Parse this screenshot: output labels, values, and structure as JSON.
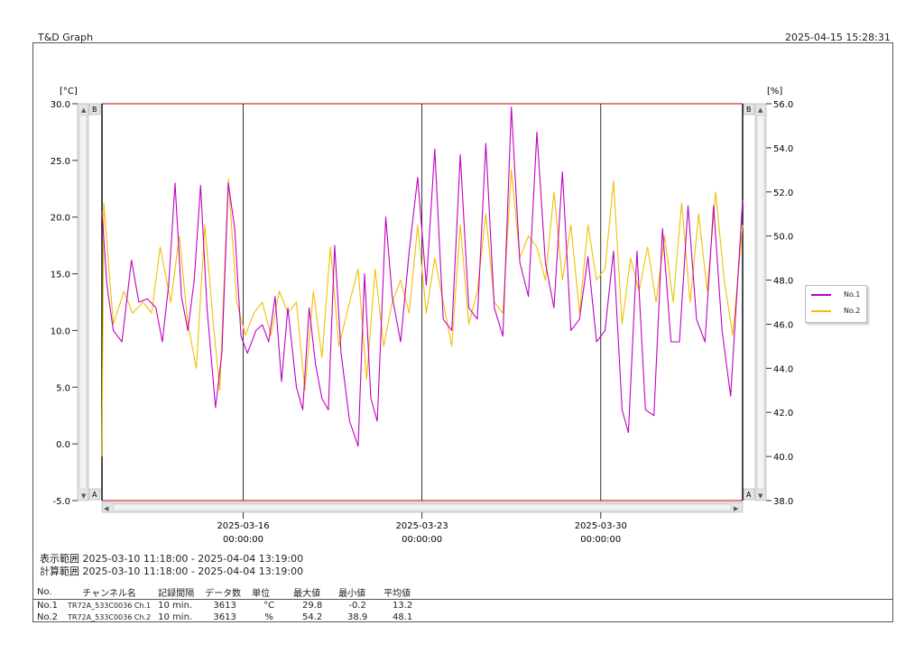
{
  "header": {
    "app_title": "T&D Graph",
    "timestamp": "2025-04-15 15:28:31"
  },
  "ranges": {
    "display_label": "表示範囲",
    "display_value": "2025-03-10 11:18:00 - 2025-04-04 13:19:00",
    "calc_label": "計算範囲",
    "calc_value": "2025-03-10 11:18:00 - 2025-04-04 13:19:00"
  },
  "scroll_labels": {
    "top": "B",
    "bottom": "A"
  },
  "legend": [
    {
      "label": "No.1",
      "color": "#c000c0"
    },
    {
      "label": "No.2",
      "color": "#f0c000"
    }
  ],
  "table": {
    "headers": [
      "No.",
      "チャンネル名",
      "記録間隔",
      "データ数",
      "単位",
      "最大値",
      "最小値",
      "平均値"
    ],
    "rows": [
      [
        "No.1",
        "TR72A_533C0036 Ch.1",
        "10 min.",
        "3613",
        "°C",
        "29.8",
        "-0.2",
        "13.2"
      ],
      [
        "No.2",
        "TR72A_533C0036 Ch.2",
        "10 min.",
        "3613",
        "%",
        "54.2",
        "38.9",
        "48.1"
      ]
    ]
  },
  "chart_data": {
    "type": "line",
    "x_range": [
      "2025-03-10 11:18:00",
      "2025-04-04 13:19:00"
    ],
    "x_ticks": [
      {
        "date": "2025-03-16",
        "time": "00:00:00",
        "t": "2025-03-16 00:00:00"
      },
      {
        "date": "2025-03-23",
        "time": "00:00:00",
        "t": "2025-03-23 00:00:00"
      },
      {
        "date": "2025-03-30",
        "time": "00:00:00",
        "t": "2025-03-30 00:00:00"
      }
    ],
    "y_left": {
      "label": "[°C]",
      "range": [
        -5,
        30
      ],
      "ticks": [
        "30.0",
        "25.0",
        "20.0",
        "15.0",
        "10.0",
        "5.0",
        "0.0",
        "-5.0"
      ]
    },
    "y_right": {
      "label": "[%]",
      "range": [
        38,
        56
      ],
      "ticks": [
        "56.0",
        "54.0",
        "52.0",
        "50.0",
        "48.0",
        "46.0",
        "44.0",
        "42.0",
        "40.0",
        "38.0"
      ]
    },
    "series": [
      {
        "name": "No.1",
        "axis": "left",
        "color": "#c000c0",
        "points": [
          [
            "2025-03-10 11:18:00",
            20.5
          ],
          [
            "2025-03-10 16:00:00",
            14.0
          ],
          [
            "2025-03-10 22:00:00",
            10.0
          ],
          [
            "2025-03-11 06:00:00",
            9.0
          ],
          [
            "2025-03-11 15:00:00",
            16.2
          ],
          [
            "2025-03-11 22:00:00",
            12.5
          ],
          [
            "2025-03-12 06:00:00",
            12.8
          ],
          [
            "2025-03-12 14:00:00",
            12.0
          ],
          [
            "2025-03-12 20:00:00",
            9.0
          ],
          [
            "2025-03-13 02:00:00",
            14.0
          ],
          [
            "2025-03-13 08:00:00",
            23.0
          ],
          [
            "2025-03-13 14:00:00",
            13.0
          ],
          [
            "2025-03-13 20:00:00",
            10.0
          ],
          [
            "2025-03-14 02:00:00",
            14.5
          ],
          [
            "2025-03-14 08:00:00",
            22.8
          ],
          [
            "2025-03-14 14:00:00",
            12.0
          ],
          [
            "2025-03-14 22:00:00",
            3.2
          ],
          [
            "2025-03-15 04:00:00",
            8.0
          ],
          [
            "2025-03-15 10:00:00",
            23.0
          ],
          [
            "2025-03-15 16:00:00",
            19.0
          ],
          [
            "2025-03-15 22:00:00",
            9.5
          ],
          [
            "2025-03-16 04:00:00",
            8.0
          ],
          [
            "2025-03-16 12:00:00",
            10.0
          ],
          [
            "2025-03-16 18:00:00",
            10.5
          ],
          [
            "2025-03-17 00:00:00",
            9.0
          ],
          [
            "2025-03-17 06:00:00",
            13.0
          ],
          [
            "2025-03-17 12:00:00",
            5.5
          ],
          [
            "2025-03-17 18:00:00",
            12.0
          ],
          [
            "2025-03-18 02:00:00",
            5.0
          ],
          [
            "2025-03-18 08:00:00",
            3.0
          ],
          [
            "2025-03-18 14:00:00",
            12.0
          ],
          [
            "2025-03-18 20:00:00",
            7.0
          ],
          [
            "2025-03-19 02:00:00",
            4.0
          ],
          [
            "2025-03-19 08:00:00",
            3.0
          ],
          [
            "2025-03-19 14:00:00",
            17.5
          ],
          [
            "2025-03-19 20:00:00",
            8.0
          ],
          [
            "2025-03-20 04:00:00",
            2.0
          ],
          [
            "2025-03-20 12:00:00",
            -0.2
          ],
          [
            "2025-03-20 18:00:00",
            15.0
          ],
          [
            "2025-03-21 00:00:00",
            4.0
          ],
          [
            "2025-03-21 06:00:00",
            2.0
          ],
          [
            "2025-03-21 14:00:00",
            20.0
          ],
          [
            "2025-03-21 20:00:00",
            13.0
          ],
          [
            "2025-03-22 04:00:00",
            9.0
          ],
          [
            "2025-03-22 12:00:00",
            17.0
          ],
          [
            "2025-03-22 20:00:00",
            23.5
          ],
          [
            "2025-03-23 04:00:00",
            14.0
          ],
          [
            "2025-03-23 12:00:00",
            26.0
          ],
          [
            "2025-03-23 20:00:00",
            11.0
          ],
          [
            "2025-03-24 04:00:00",
            10.0
          ],
          [
            "2025-03-24 12:00:00",
            25.5
          ],
          [
            "2025-03-24 20:00:00",
            12.0
          ],
          [
            "2025-03-25 04:00:00",
            11.0
          ],
          [
            "2025-03-25 12:00:00",
            26.5
          ],
          [
            "2025-03-25 20:00:00",
            12.0
          ],
          [
            "2025-03-26 04:00:00",
            9.5
          ],
          [
            "2025-03-26 12:00:00",
            29.7
          ],
          [
            "2025-03-26 20:00:00",
            16.0
          ],
          [
            "2025-03-27 04:00:00",
            13.0
          ],
          [
            "2025-03-27 12:00:00",
            27.5
          ],
          [
            "2025-03-27 20:00:00",
            16.0
          ],
          [
            "2025-03-28 04:00:00",
            12.0
          ],
          [
            "2025-03-28 12:00:00",
            24.0
          ],
          [
            "2025-03-28 20:00:00",
            10.0
          ],
          [
            "2025-03-29 04:00:00",
            11.0
          ],
          [
            "2025-03-29 12:00:00",
            16.5
          ],
          [
            "2025-03-29 20:00:00",
            9.0
          ],
          [
            "2025-03-30 04:00:00",
            10.0
          ],
          [
            "2025-03-30 12:00:00",
            17.0
          ],
          [
            "2025-03-30 20:00:00",
            3.0
          ],
          [
            "2025-03-31 02:00:00",
            1.0
          ],
          [
            "2025-03-31 10:00:00",
            17.0
          ],
          [
            "2025-03-31 18:00:00",
            3.0
          ],
          [
            "2025-04-01 02:00:00",
            2.5
          ],
          [
            "2025-04-01 10:00:00",
            19.0
          ],
          [
            "2025-04-01 18:00:00",
            9.0
          ],
          [
            "2025-04-02 02:00:00",
            9.0
          ],
          [
            "2025-04-02 10:00:00",
            21.0
          ],
          [
            "2025-04-02 18:00:00",
            11.0
          ],
          [
            "2025-04-03 02:00:00",
            9.0
          ],
          [
            "2025-04-03 10:00:00",
            21.0
          ],
          [
            "2025-04-03 18:00:00",
            10.0
          ],
          [
            "2025-04-04 02:00:00",
            4.2
          ],
          [
            "2025-04-04 13:19:00",
            21.5
          ]
        ]
      },
      {
        "name": "No.2",
        "axis": "right",
        "color": "#f0c000",
        "points": [
          [
            "2025-03-10 11:18:00",
            40.0
          ],
          [
            "2025-03-10 13:00:00",
            51.5
          ],
          [
            "2025-03-10 22:00:00",
            46.0
          ],
          [
            "2025-03-11 08:00:00",
            47.5
          ],
          [
            "2025-03-11 16:00:00",
            46.5
          ],
          [
            "2025-03-12 02:00:00",
            47.0
          ],
          [
            "2025-03-12 10:00:00",
            46.5
          ],
          [
            "2025-03-12 18:00:00",
            49.5
          ],
          [
            "2025-03-13 04:00:00",
            47.0
          ],
          [
            "2025-03-13 12:00:00",
            50.0
          ],
          [
            "2025-03-13 20:00:00",
            46.0
          ],
          [
            "2025-03-14 04:00:00",
            44.0
          ],
          [
            "2025-03-14 12:00:00",
            50.5
          ],
          [
            "2025-03-14 20:00:00",
            46.0
          ],
          [
            "2025-03-15 02:00:00",
            43.0
          ],
          [
            "2025-03-15 10:00:00",
            52.6
          ],
          [
            "2025-03-15 18:00:00",
            47.0
          ],
          [
            "2025-03-16 02:00:00",
            45.5
          ],
          [
            "2025-03-16 10:00:00",
            46.5
          ],
          [
            "2025-03-16 18:00:00",
            47.0
          ],
          [
            "2025-03-17 02:00:00",
            45.5
          ],
          [
            "2025-03-17 10:00:00",
            47.5
          ],
          [
            "2025-03-17 18:00:00",
            46.5
          ],
          [
            "2025-03-18 02:00:00",
            47.0
          ],
          [
            "2025-03-18 10:00:00",
            43.0
          ],
          [
            "2025-03-18 18:00:00",
            47.5
          ],
          [
            "2025-03-19 02:00:00",
            44.5
          ],
          [
            "2025-03-19 10:00:00",
            49.5
          ],
          [
            "2025-03-19 18:00:00",
            45.0
          ],
          [
            "2025-03-20 04:00:00",
            47.0
          ],
          [
            "2025-03-20 12:00:00",
            48.5
          ],
          [
            "2025-03-20 20:00:00",
            43.5
          ],
          [
            "2025-03-21 04:00:00",
            48.5
          ],
          [
            "2025-03-21 12:00:00",
            45.0
          ],
          [
            "2025-03-21 20:00:00",
            47.0
          ],
          [
            "2025-03-22 04:00:00",
            48.0
          ],
          [
            "2025-03-22 12:00:00",
            46.5
          ],
          [
            "2025-03-22 20:00:00",
            50.5
          ],
          [
            "2025-03-23 04:00:00",
            46.5
          ],
          [
            "2025-03-23 12:00:00",
            49.0
          ],
          [
            "2025-03-23 20:00:00",
            47.0
          ],
          [
            "2025-03-24 04:00:00",
            45.0
          ],
          [
            "2025-03-24 12:00:00",
            50.5
          ],
          [
            "2025-03-24 20:00:00",
            46.0
          ],
          [
            "2025-03-25 04:00:00",
            47.5
          ],
          [
            "2025-03-25 12:00:00",
            51.0
          ],
          [
            "2025-03-25 20:00:00",
            47.0
          ],
          [
            "2025-03-26 04:00:00",
            46.5
          ],
          [
            "2025-03-26 12:00:00",
            53.0
          ],
          [
            "2025-03-26 20:00:00",
            49.0
          ],
          [
            "2025-03-27 04:00:00",
            50.0
          ],
          [
            "2025-03-27 12:00:00",
            49.5
          ],
          [
            "2025-03-27 20:00:00",
            48.0
          ],
          [
            "2025-03-28 04:00:00",
            52.0
          ],
          [
            "2025-03-28 12:00:00",
            48.0
          ],
          [
            "2025-03-28 20:00:00",
            50.5
          ],
          [
            "2025-03-29 04:00:00",
            46.5
          ],
          [
            "2025-03-29 12:00:00",
            50.5
          ],
          [
            "2025-03-29 20:00:00",
            48.0
          ],
          [
            "2025-03-30 04:00:00",
            48.5
          ],
          [
            "2025-03-30 12:00:00",
            52.5
          ],
          [
            "2025-03-30 20:00:00",
            46.0
          ],
          [
            "2025-03-31 04:00:00",
            49.0
          ],
          [
            "2025-03-31 12:00:00",
            47.5
          ],
          [
            "2025-03-31 20:00:00",
            49.5
          ],
          [
            "2025-04-01 04:00:00",
            47.0
          ],
          [
            "2025-04-01 12:00:00",
            50.0
          ],
          [
            "2025-04-01 20:00:00",
            47.0
          ],
          [
            "2025-04-02 04:00:00",
            51.5
          ],
          [
            "2025-04-02 12:00:00",
            47.0
          ],
          [
            "2025-04-02 20:00:00",
            51.0
          ],
          [
            "2025-04-03 04:00:00",
            47.5
          ],
          [
            "2025-04-03 12:00:00",
            52.0
          ],
          [
            "2025-04-03 20:00:00",
            48.0
          ],
          [
            "2025-04-04 04:00:00",
            45.5
          ],
          [
            "2025-04-04 13:19:00",
            50.5
          ]
        ]
      }
    ]
  }
}
